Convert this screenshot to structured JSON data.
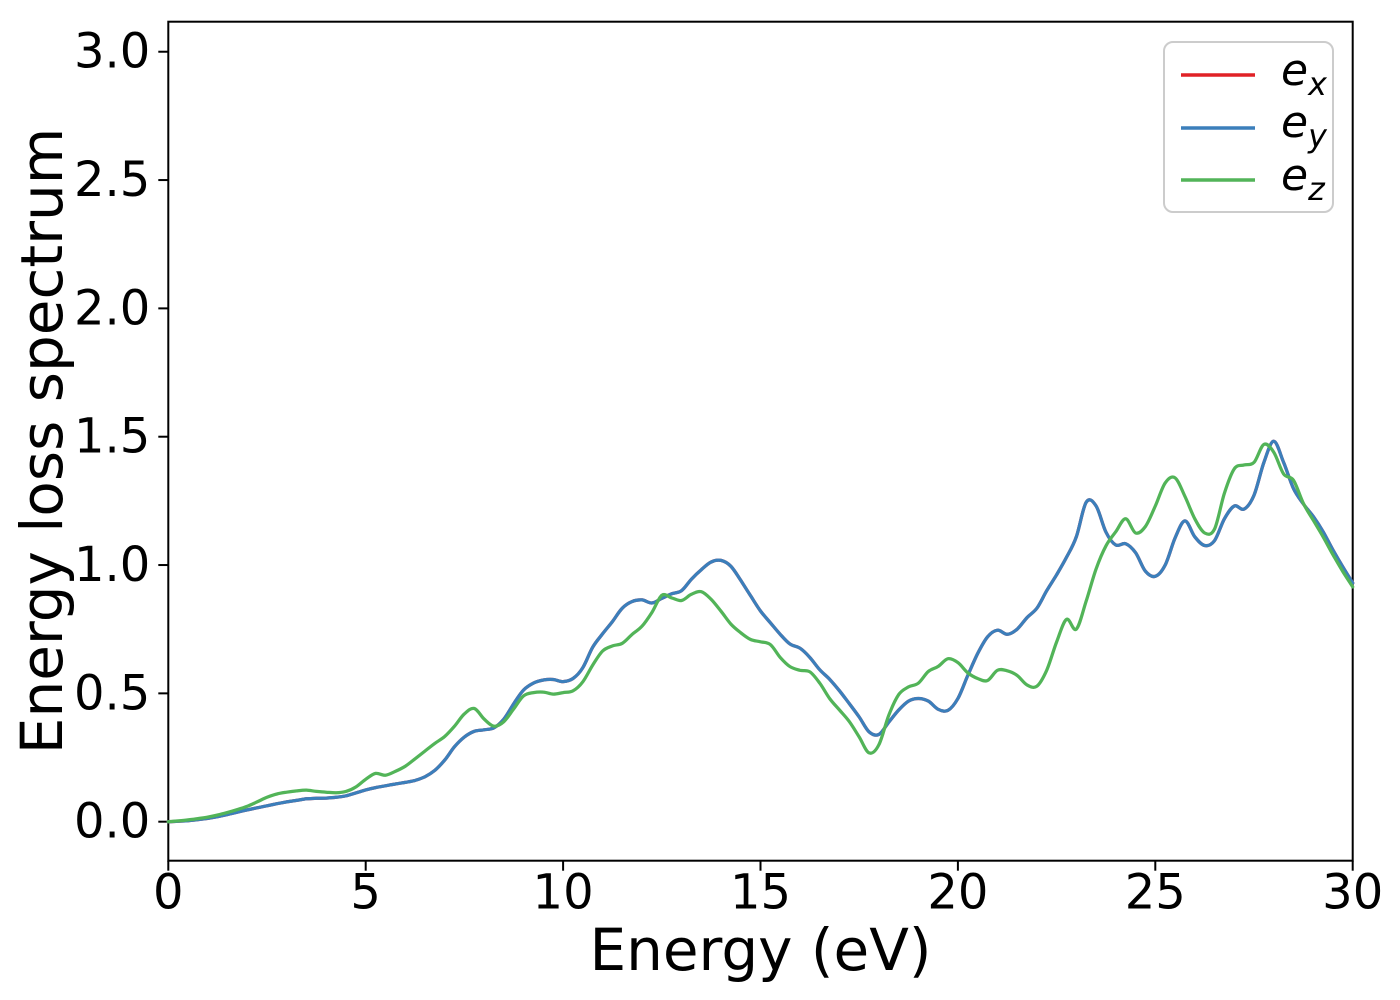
{
  "figure": {
    "background": "#ffffff",
    "spine_color": "#000000"
  },
  "chart_data": {
    "type": "line",
    "title": "",
    "xlabel": "Energy (eV)",
    "ylabel": "Energy loss spectrum",
    "xlim": [
      0,
      30
    ],
    "ylim": [
      -0.152,
      3.117
    ],
    "grid": false,
    "legend_position": "upper right",
    "xticks": {
      "values": [
        0,
        5,
        10,
        15,
        20,
        25,
        30
      ],
      "labels": [
        "0",
        "5",
        "10",
        "15",
        "20",
        "25",
        "30"
      ]
    },
    "yticks": {
      "values": [
        0.0,
        0.5,
        1.0,
        1.5,
        2.0,
        2.5,
        3.0
      ],
      "labels": [
        "0.0",
        "0.5",
        "1.0",
        "1.5",
        "2.0",
        "2.5",
        "3.0"
      ]
    },
    "x_start": 0,
    "x_step": 0.25,
    "series": [
      {
        "name": "e_x",
        "legend_base": "e",
        "legend_sub": "x",
        "color": "#e02126",
        "values": [
          0.0,
          0.002,
          0.004,
          0.008,
          0.013,
          0.02,
          0.028,
          0.037,
          0.046,
          0.054,
          0.062,
          0.07,
          0.077,
          0.083,
          0.089,
          0.091,
          0.092,
          0.095,
          0.101,
          0.112,
          0.124,
          0.133,
          0.14,
          0.147,
          0.153,
          0.161,
          0.175,
          0.2,
          0.24,
          0.292,
          0.33,
          0.352,
          0.358,
          0.366,
          0.4,
          0.46,
          0.513,
          0.54,
          0.552,
          0.554,
          0.546,
          0.558,
          0.6,
          0.68,
          0.732,
          0.78,
          0.832,
          0.858,
          0.864,
          0.852,
          0.87,
          0.888,
          0.9,
          0.945,
          0.982,
          1.012,
          1.018,
          0.995,
          0.94,
          0.88,
          0.821,
          0.775,
          0.73,
          0.692,
          0.676,
          0.64,
          0.592,
          0.555,
          0.51,
          0.46,
          0.408,
          0.35,
          0.34,
          0.388,
          0.435,
          0.47,
          0.48,
          0.47,
          0.438,
          0.434,
          0.48,
          0.57,
          0.655,
          0.72,
          0.746,
          0.73,
          0.75,
          0.795,
          0.832,
          0.9,
          0.962,
          1.03,
          1.11,
          1.245,
          1.23,
          1.128,
          1.078,
          1.083,
          1.048,
          0.976,
          0.956,
          1.0,
          1.105,
          1.172,
          1.11,
          1.076,
          1.095,
          1.18,
          1.23,
          1.218,
          1.272,
          1.4,
          1.482,
          1.4,
          1.298,
          1.238,
          1.19,
          1.13,
          1.058,
          0.993,
          0.93
        ]
      },
      {
        "name": "e_y",
        "legend_base": "e",
        "legend_sub": "y",
        "color": "#3b7fbb",
        "values": [
          0.0,
          0.002,
          0.004,
          0.008,
          0.013,
          0.02,
          0.028,
          0.037,
          0.046,
          0.054,
          0.062,
          0.07,
          0.077,
          0.083,
          0.089,
          0.091,
          0.092,
          0.095,
          0.101,
          0.112,
          0.124,
          0.133,
          0.14,
          0.147,
          0.153,
          0.161,
          0.175,
          0.2,
          0.24,
          0.292,
          0.33,
          0.352,
          0.358,
          0.366,
          0.4,
          0.46,
          0.513,
          0.54,
          0.552,
          0.554,
          0.546,
          0.558,
          0.6,
          0.68,
          0.732,
          0.78,
          0.832,
          0.858,
          0.864,
          0.852,
          0.87,
          0.888,
          0.9,
          0.945,
          0.982,
          1.012,
          1.018,
          0.995,
          0.94,
          0.88,
          0.821,
          0.775,
          0.73,
          0.692,
          0.676,
          0.64,
          0.592,
          0.555,
          0.51,
          0.46,
          0.408,
          0.35,
          0.34,
          0.388,
          0.435,
          0.47,
          0.48,
          0.47,
          0.438,
          0.434,
          0.48,
          0.57,
          0.655,
          0.72,
          0.746,
          0.73,
          0.75,
          0.795,
          0.832,
          0.9,
          0.962,
          1.03,
          1.11,
          1.245,
          1.23,
          1.128,
          1.078,
          1.083,
          1.048,
          0.976,
          0.956,
          1.0,
          1.105,
          1.172,
          1.11,
          1.076,
          1.095,
          1.18,
          1.23,
          1.218,
          1.272,
          1.4,
          1.482,
          1.4,
          1.298,
          1.238,
          1.19,
          1.13,
          1.058,
          0.993,
          0.93
        ]
      },
      {
        "name": "e_z",
        "legend_base": "e",
        "legend_sub": "z",
        "color": "#52b458",
        "values": [
          0.0,
          0.003,
          0.007,
          0.012,
          0.018,
          0.026,
          0.036,
          0.047,
          0.06,
          0.077,
          0.095,
          0.108,
          0.115,
          0.12,
          0.123,
          0.118,
          0.115,
          0.113,
          0.118,
          0.135,
          0.165,
          0.188,
          0.181,
          0.196,
          0.216,
          0.245,
          0.275,
          0.305,
          0.332,
          0.372,
          0.42,
          0.441,
          0.4,
          0.372,
          0.39,
          0.44,
          0.49,
          0.503,
          0.505,
          0.497,
          0.503,
          0.51,
          0.545,
          0.61,
          0.665,
          0.685,
          0.695,
          0.73,
          0.762,
          0.815,
          0.882,
          0.872,
          0.862,
          0.886,
          0.896,
          0.866,
          0.82,
          0.77,
          0.736,
          0.71,
          0.701,
          0.69,
          0.64,
          0.604,
          0.59,
          0.584,
          0.54,
          0.48,
          0.435,
          0.39,
          0.33,
          0.268,
          0.3,
          0.415,
          0.495,
          0.525,
          0.54,
          0.585,
          0.605,
          0.635,
          0.62,
          0.58,
          0.558,
          0.55,
          0.59,
          0.588,
          0.57,
          0.533,
          0.528,
          0.59,
          0.7,
          0.788,
          0.75,
          0.86,
          0.985,
          1.075,
          1.13,
          1.18,
          1.125,
          1.15,
          1.23,
          1.32,
          1.34,
          1.268,
          1.18,
          1.125,
          1.14,
          1.28,
          1.375,
          1.39,
          1.4,
          1.47,
          1.44,
          1.355,
          1.33,
          1.24,
          1.175,
          1.11,
          1.04,
          0.975,
          0.915
        ]
      }
    ]
  }
}
